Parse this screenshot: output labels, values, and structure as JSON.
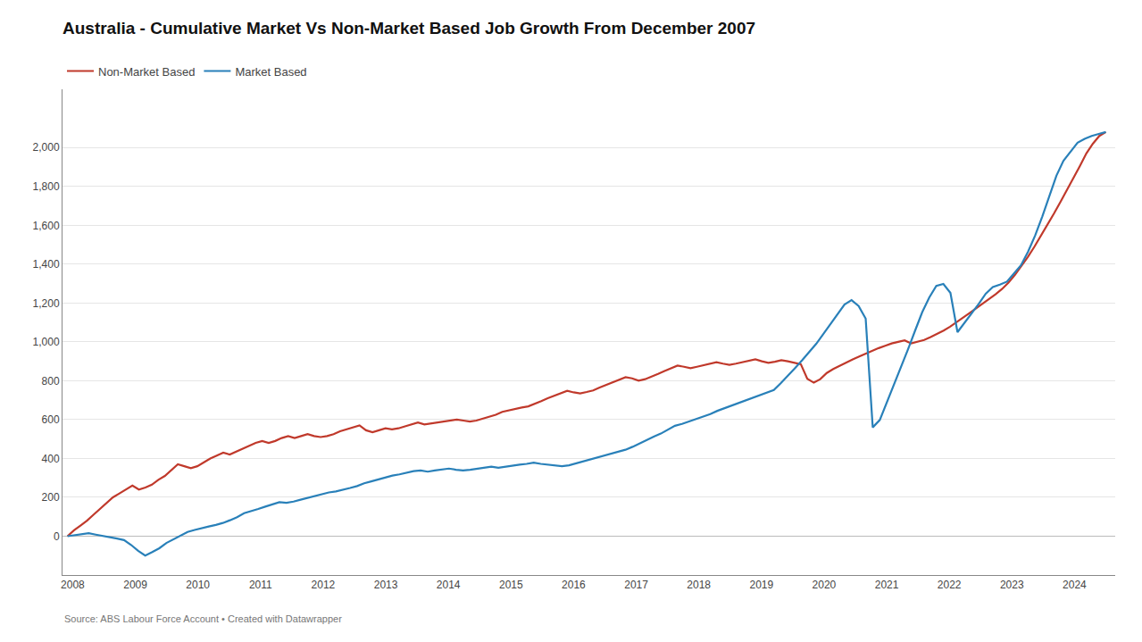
{
  "chart_data": {
    "type": "line",
    "title": "Australia - Cumulative Market Vs Non-Market Based Job Growth From December 2007",
    "annotations": [
      "Source: ABS Labour Force Account • Created with Datawrapper"
    ],
    "series": [
      {
        "name": "Non-Market Based",
        "color": "#c0392b",
        "x": [
          2007.917,
          2008.02064375,
          2008.1242875,
          2008.22793125,
          2008.331575,
          2008.43521875,
          2008.5388625,
          2008.64250625,
          2008.74615,
          2008.84979375,
          2008.9534375,
          2009.05708125,
          2009.160725,
          2009.26436875,
          2009.3680125,
          2009.47165625,
          2009.5753,
          2009.67894375,
          2009.7825875,
          2009.88623125,
          2009.989875,
          2010.09351875,
          2010.1971625,
          2010.30080625,
          2010.40445,
          2010.50809375,
          2010.6117375,
          2010.71538125,
          2010.819025,
          2010.92266875,
          2011.0263125,
          2011.12995625,
          2011.2336,
          2011.33724375,
          2011.4408875,
          2011.54453125,
          2011.648175,
          2011.75181875,
          2011.8554625,
          2011.95910625,
          2012.06275,
          2012.16639375,
          2012.2700375,
          2012.37368125,
          2012.477325,
          2012.58096875,
          2012.6846125,
          2012.78825625,
          2012.8919,
          2012.99554375,
          2013.0991875,
          2013.20283125,
          2013.306475,
          2013.41011875,
          2013.5137625,
          2013.61740625,
          2013.72105,
          2013.82469375,
          2013.9283375,
          2014.03198125,
          2014.135625,
          2014.23926875,
          2014.3429125,
          2014.44655625,
          2014.5502,
          2014.65384375,
          2014.7574875,
          2014.86113125,
          2014.964775,
          2015.06841875,
          2015.1720625,
          2015.27570625,
          2015.37935,
          2015.48299375,
          2015.5866375,
          2015.69028125,
          2015.793925,
          2015.89756875,
          2016.0012125,
          2016.10485625,
          2016.2085,
          2016.31214375,
          2016.4157875,
          2016.51943125,
          2016.623075,
          2016.72671875,
          2016.8303625,
          2016.93400625,
          2017.03765,
          2017.14129375,
          2017.2449375,
          2017.34858125,
          2017.452225,
          2017.55586875,
          2017.6595125,
          2017.76315625,
          2017.8668,
          2017.97044375,
          2018.0740875,
          2018.17773125,
          2018.281375,
          2018.38501875,
          2018.4886625,
          2018.59230625,
          2018.69595,
          2018.79959375,
          2018.9032375,
          2019.00688125,
          2019.110525,
          2019.21416875,
          2019.3178125,
          2019.42145625,
          2019.5251,
          2019.62874375,
          2019.7323875,
          2019.83603125,
          2019.939675,
          2020.04331875,
          2020.1469625,
          2020.25060625,
          2020.35425,
          2020.45789375,
          2020.5615375,
          2020.66518125,
          2020.768825,
          2020.87246875,
          2020.9761125,
          2021.07975625,
          2021.1834,
          2021.28704375,
          2021.3906875,
          2021.49433125,
          2021.597975,
          2021.70161875,
          2021.8052625,
          2021.90890625,
          2022.01255,
          2022.11619375,
          2022.2198375,
          2022.32348125,
          2022.427125,
          2022.53076875,
          2022.6344125,
          2022.73805625,
          2022.8417,
          2022.94534375,
          2023.0489875,
          2023.15263125,
          2023.256275,
          2023.35991875,
          2023.4635625,
          2023.56720625,
          2023.67085,
          2023.77449375,
          2023.8781375,
          2023.98178125,
          2024.085425,
          2024.18906875,
          2024.2927125,
          2024.39635625,
          2024.5
        ],
        "values": [
          0,
          30,
          55,
          80,
          110,
          140,
          170,
          200,
          220,
          240,
          260,
          240,
          250,
          265,
          290,
          310,
          340,
          370,
          360,
          350,
          360,
          380,
          400,
          415,
          430,
          420,
          435,
          450,
          465,
          480,
          490,
          480,
          490,
          505,
          515,
          505,
          515,
          525,
          515,
          510,
          515,
          525,
          540,
          550,
          560,
          570,
          545,
          535,
          545,
          555,
          550,
          555,
          565,
          575,
          585,
          575,
          580,
          585,
          590,
          595,
          600,
          595,
          590,
          595,
          605,
          615,
          625,
          640,
          648,
          655,
          662,
          668,
          680,
          695,
          710,
          722,
          735,
          748,
          740,
          735,
          742,
          750,
          765,
          778,
          792,
          805,
          818,
          812,
          800,
          808,
          820,
          835,
          850,
          865,
          878,
          872,
          865,
          872,
          880,
          888,
          895,
          888,
          882,
          888,
          895,
          902,
          910,
          900,
          892,
          898,
          906,
          900,
          892,
          885,
          810,
          790,
          808,
          840,
          860,
          878,
          895,
          910,
          925,
          940,
          955,
          968,
          980,
          992,
          1000,
          1008,
          992,
          1000,
          1010,
          1025,
          1040,
          1058,
          1078,
          1100,
          1125,
          1148,
          1172,
          1195,
          1218,
          1245,
          1272,
          1305,
          1345,
          1390,
          1438,
          1490,
          1545,
          1602,
          1660,
          1720,
          1780,
          1842,
          1905,
          1970,
          2020,
          2060,
          2080
        ]
      },
      {
        "name": "Market Based",
        "color": "#2980b9",
        "x": [
          2007.917,
          2008.02981,
          2008.142619,
          2008.255429,
          2008.368238,
          2008.481048,
          2008.593857,
          2008.706667,
          2008.819476,
          2008.932286,
          2009.045095,
          2009.157905,
          2009.270714,
          2009.383524,
          2009.496333,
          2009.609143,
          2009.721952,
          2009.834762,
          2009.947571,
          2010.060381,
          2010.17319,
          2010.286,
          2010.39881,
          2010.511619,
          2010.624429,
          2010.737238,
          2010.850048,
          2010.962857,
          2011.075667,
          2011.188476,
          2011.301286,
          2011.414095,
          2011.526905,
          2011.639714,
          2011.752524,
          2011.865333,
          2011.978143,
          2012.090952,
          2012.203762,
          2012.316571,
          2012.429381,
          2012.54219,
          2012.655,
          2012.76781,
          2012.880619,
          2012.993429,
          2013.106238,
          2013.219048,
          2013.331857,
          2013.444667,
          2013.557476,
          2013.670286,
          2013.783095,
          2013.895905,
          2014.008714,
          2014.121524,
          2014.234333,
          2014.347143,
          2014.459952,
          2014.572762,
          2014.685571,
          2014.798381,
          2014.91119,
          2015.024,
          2015.13681,
          2015.249619,
          2015.362429,
          2015.475238,
          2015.588048,
          2015.700857,
          2015.813667,
          2015.926476,
          2016.039286,
          2016.152095,
          2016.264905,
          2016.377714,
          2016.490524,
          2016.603333,
          2016.716143,
          2016.828952,
          2016.941762,
          2017.054571,
          2017.167381,
          2017.28019,
          2017.393,
          2017.50581,
          2017.618619,
          2017.731429,
          2017.844238,
          2017.957048,
          2018.069857,
          2018.182667,
          2018.295476,
          2018.408286,
          2018.521095,
          2018.633905,
          2018.746714,
          2018.859524,
          2018.972333,
          2019.085143,
          2019.197952,
          2019.310762,
          2019.423571,
          2019.536381,
          2019.64919,
          2019.762,
          2019.87481,
          2019.987619,
          2020.100429,
          2020.213238,
          2020.326048,
          2020.438857,
          2020.551667,
          2020.664476,
          2020.777286,
          2020.890095,
          2021.002905,
          2021.115714,
          2021.228524,
          2021.341333,
          2021.454143,
          2021.566952,
          2021.679762,
          2021.792571,
          2021.905381,
          2022.01819,
          2022.131,
          2022.24381,
          2022.356619,
          2022.469429,
          2022.582238,
          2022.695048,
          2022.807857,
          2022.920667,
          2023.033476,
          2023.146286,
          2023.259095,
          2023.371905,
          2023.484714,
          2023.597524,
          2023.710333,
          2023.823143,
          2023.935952,
          2024.048762,
          2024.161571,
          2024.274381,
          2024.38719,
          2024.5
        ],
        "values": [
          0,
          5,
          10,
          15,
          8,
          2,
          -5,
          -12,
          -20,
          -45,
          -75,
          -100,
          -82,
          -62,
          -35,
          -15,
          5,
          22,
          32,
          42,
          50,
          58,
          68,
          82,
          98,
          118,
          128,
          140,
          152,
          165,
          175,
          172,
          178,
          188,
          198,
          205,
          215,
          225,
          230,
          238,
          248,
          258,
          272,
          282,
          292,
          302,
          312,
          318,
          325,
          335,
          338,
          332,
          338,
          342,
          348,
          342,
          338,
          342,
          348,
          352,
          358,
          352,
          358,
          362,
          368,
          372,
          378,
          372,
          368,
          364,
          360,
          365,
          375,
          385,
          395,
          405,
          415,
          425,
          435,
          445,
          460,
          478,
          495,
          512,
          528,
          548,
          568,
          578,
          590,
          602,
          615,
          628,
          645,
          658,
          672,
          685,
          698,
          712,
          725,
          738,
          752,
          788,
          825,
          865,
          905,
          948,
          990,
          1040,
          1090,
          1140,
          1192,
          1215,
          1185,
          1120,
          560,
          598,
          688,
          775,
          870,
          962,
          1058,
          1152,
          1228,
          1288,
          1298,
          1252,
          1050,
          1098,
          1145,
          1195,
          1248,
          1282,
          1295,
          1310,
          1352,
          1395,
          1465,
          1548,
          1645,
          1748,
          1855,
          1932,
          1980,
          2025,
          2045,
          2060,
          2070,
          2080
        ]
      }
    ],
    "xlim": [
      2007.837,
      2024.65
    ],
    "xticks": [
      2008,
      2009,
      2010,
      2011,
      2012,
      2013,
      2014,
      2015,
      2016,
      2017,
      2018,
      2019,
      2020,
      2021,
      2022,
      2023,
      2024
    ],
    "ylim": [
      -200,
      2300
    ],
    "yticks": [
      0,
      200,
      400,
      600,
      800,
      {
        "value": 1000,
        "label": "1,000"
      },
      {
        "value": 1200,
        "label": "1,200"
      },
      {
        "value": 1400,
        "label": "1,400"
      },
      {
        "value": 1600,
        "label": "1,600"
      },
      {
        "value": 1800,
        "label": "1,800"
      },
      {
        "value": 2000,
        "label": "2,000"
      }
    ],
    "grid": "y",
    "legend": "top left"
  }
}
